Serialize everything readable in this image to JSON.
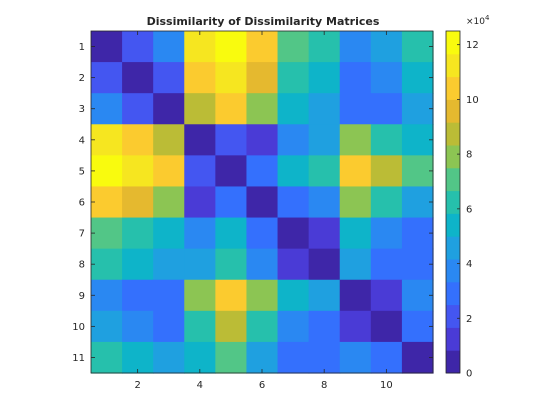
{
  "chart_data": {
    "type": "heatmap",
    "title": "Dissimilarity of Dissimilarity Matrices",
    "xlabel": "",
    "ylabel": "",
    "x_ticks": [
      2,
      4,
      6,
      8,
      10
    ],
    "y_ticks": [
      1,
      2,
      3,
      4,
      5,
      6,
      7,
      8,
      9,
      10,
      11
    ],
    "colorbar": {
      "min": 0,
      "max": 12.5,
      "ticks": [
        0,
        2,
        4,
        6,
        8,
        10,
        12
      ],
      "multiplier": "×10",
      "exponent": "4"
    },
    "colormap": [
      "#3e26a8",
      "#4a3bd6",
      "#4456f1",
      "#3470fd",
      "#2a88f2",
      "#1fa0e0",
      "#0eb4c9",
      "#26c0ac",
      "#52c687",
      "#8cc553",
      "#bbbc36",
      "#e5b92f",
      "#fbcb2f",
      "#f6e620",
      "#f9fb0e"
    ],
    "matrix": [
      [
        0.0,
        2.2,
        3.5,
        11.0,
        12.5,
        10.5,
        7.0,
        6.5,
        3.8,
        4.5,
        6.0
      ],
      [
        2.2,
        0.0,
        2.0,
        10.0,
        11.5,
        9.5,
        6.5,
        5.5,
        3.2,
        3.8,
        5.5
      ],
      [
        3.5,
        2.0,
        0.0,
        8.5,
        10.5,
        7.5,
        5.5,
        4.5,
        2.6,
        3.2,
        4.8
      ],
      [
        11.0,
        10.0,
        8.5,
        0.0,
        2.0,
        1.0,
        3.5,
        4.5,
        8.0,
        6.5,
        5.5
      ],
      [
        12.5,
        11.5,
        10.5,
        2.0,
        0.0,
        2.5,
        5.0,
        6.0,
        10.0,
        8.5,
        7.0
      ],
      [
        10.5,
        9.5,
        7.5,
        1.0,
        2.5,
        0.0,
        3.0,
        4.0,
        7.5,
        6.0,
        4.5
      ],
      [
        7.0,
        6.5,
        5.5,
        3.5,
        5.0,
        3.0,
        0.0,
        1.5,
        5.0,
        4.0,
        3.0
      ],
      [
        6.5,
        5.5,
        4.5,
        4.5,
        6.0,
        4.0,
        1.5,
        0.0,
        4.5,
        3.2,
        2.5
      ],
      [
        3.8,
        3.2,
        2.6,
        8.0,
        10.0,
        7.5,
        5.0,
        4.5,
        0.0,
        1.5,
        3.8
      ],
      [
        4.5,
        3.8,
        3.2,
        6.5,
        8.5,
        6.0,
        4.0,
        3.2,
        1.5,
        0.0,
        3.0
      ],
      [
        6.0,
        5.5,
        4.8,
        5.5,
        7.0,
        4.5,
        3.0,
        2.5,
        3.8,
        3.0,
        0.0
      ]
    ]
  }
}
